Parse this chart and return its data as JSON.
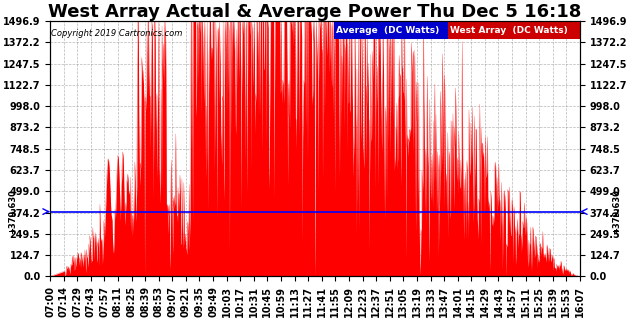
{
  "title": "West Array Actual & Average Power Thu Dec 5 16:18",
  "copyright": "Copyright 2019 Cartronics.com",
  "legend_avg_label": "Average  (DC Watts)",
  "legend_west_label": "West Array  (DC Watts)",
  "avg_value": 379.63,
  "ymax": 1496.9,
  "ymin": 0.0,
  "yticks": [
    0.0,
    124.7,
    249.5,
    374.2,
    499.0,
    623.7,
    748.5,
    873.2,
    998.0,
    1122.7,
    1247.5,
    1372.2,
    1496.9
  ],
  "fill_color": "#FF0000",
  "avg_line_color": "#0000FF",
  "background_color": "#FFFFFF",
  "grid_color": "#888888",
  "title_fontsize": 13,
  "tick_fontsize": 7,
  "avg_bg_color": "#0000CC",
  "west_bg_color": "#CC0000",
  "xtick_labels": [
    "07:00",
    "07:14",
    "07:29",
    "07:43",
    "07:57",
    "08:11",
    "08:25",
    "08:39",
    "08:53",
    "09:07",
    "09:21",
    "09:35",
    "09:49",
    "10:03",
    "10:17",
    "10:31",
    "10:45",
    "10:59",
    "11:13",
    "11:27",
    "11:41",
    "11:55",
    "12:09",
    "12:23",
    "12:37",
    "12:51",
    "13:05",
    "13:19",
    "13:33",
    "13:47",
    "14:01",
    "14:15",
    "14:29",
    "14:43",
    "14:57",
    "15:11",
    "15:25",
    "15:39",
    "15:53",
    "16:07"
  ]
}
